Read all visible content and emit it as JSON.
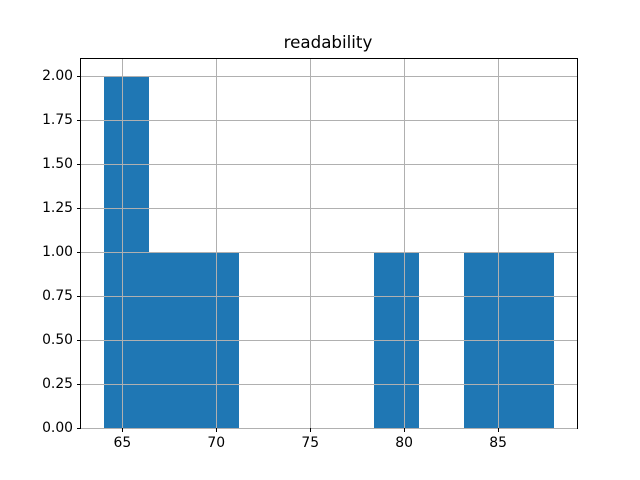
{
  "chart_data": {
    "type": "bar",
    "subtype": "histogram",
    "title": "readability",
    "bin_edges": [
      64.0,
      66.4,
      68.8,
      71.2,
      73.6,
      76.0,
      78.4,
      80.8,
      83.2,
      85.6,
      88.0
    ],
    "counts": [
      2,
      1,
      1,
      0,
      0,
      0,
      1,
      0,
      1,
      1
    ],
    "xlim": [
      62.8,
      89.2
    ],
    "ylim": [
      0.0,
      2.1
    ],
    "x_ticks": [
      65,
      70,
      75,
      80,
      85
    ],
    "x_tick_labels": [
      "65",
      "70",
      "75",
      "80",
      "85"
    ],
    "y_ticks": [
      0.0,
      0.25,
      0.5,
      0.75,
      1.0,
      1.25,
      1.5,
      1.75,
      2.0
    ],
    "y_tick_labels": [
      "0.00",
      "0.25",
      "0.50",
      "0.75",
      "1.00",
      "1.25",
      "1.50",
      "1.75",
      "2.00"
    ],
    "grid": true,
    "grid_over_bars": true,
    "legend": "none",
    "colors": {
      "bar": "#1f77b4",
      "grid": "#b0b0b0",
      "spine": "#000000",
      "text": "#000000",
      "background": "#ffffff"
    }
  }
}
